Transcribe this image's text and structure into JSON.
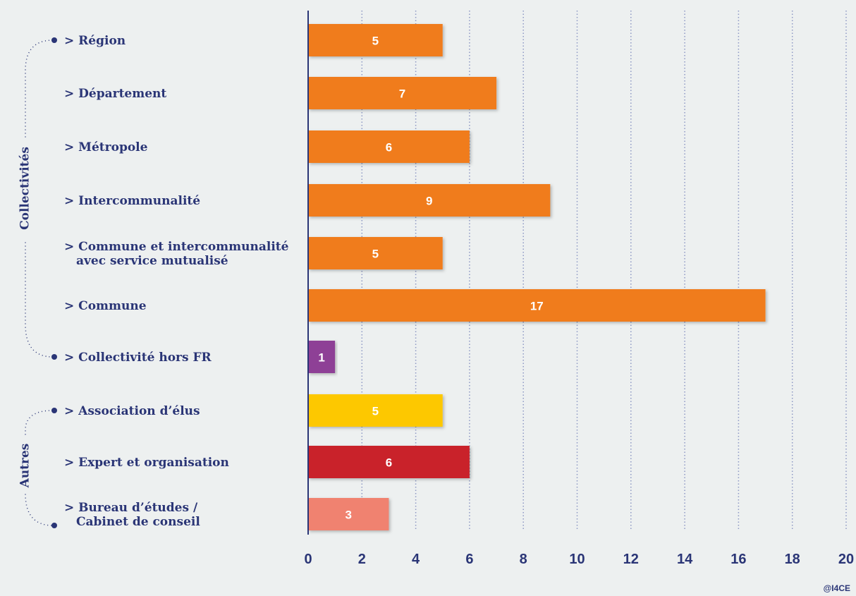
{
  "chart_data": {
    "type": "barh",
    "categories": [
      "> Région",
      "> Département",
      "> Métropole",
      "> Intercommunalité",
      "> Commune et intercommunalité\navec service mutualisé",
      "> Commune",
      "> Collectivité hors FR",
      "> Association d’élus",
      "> Expert et organisation",
      "> Bureau d’études /\nCabinet de conseil"
    ],
    "values": [
      5,
      7,
      6,
      9,
      5,
      17,
      1,
      5,
      6,
      3
    ],
    "colors": [
      "#f07c1f",
      "#f07c1f",
      "#f07c1f",
      "#f07c1f",
      "#f07c1f",
      "#f07c1f",
      "#8e3f96",
      "#fdc800",
      "#c9202b",
      "#f0826f"
    ],
    "xlim": [
      0,
      20
    ],
    "xticks": [
      0,
      2,
      4,
      6,
      8,
      10,
      12,
      14,
      16,
      18,
      20
    ],
    "grid": true,
    "groups": [
      "Collectivités",
      "Autres"
    ],
    "credit": "@I4CE"
  }
}
